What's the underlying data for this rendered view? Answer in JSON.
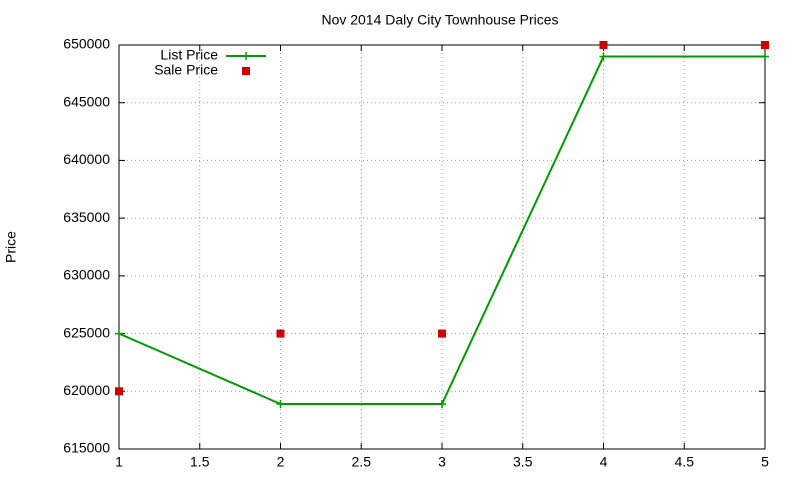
{
  "chart_data": {
    "type": "line",
    "title": "Nov 2014 Daly City Townhouse Prices",
    "y_label": "Price",
    "x": [
      1,
      2,
      3,
      4,
      5
    ],
    "series": [
      {
        "name": "List Price",
        "color": "#009900",
        "style": "linespoints",
        "values": [
          625000,
          618900,
          618900,
          649000,
          649000
        ]
      },
      {
        "name": "Sale Price",
        "color": "#cc0000",
        "style": "points",
        "values": [
          620000,
          625000,
          625000,
          650000,
          650000
        ]
      }
    ],
    "xlim": [
      1,
      5
    ],
    "xticks": [
      1,
      1.5,
      2,
      2.5,
      3,
      3.5,
      4,
      4.5,
      5
    ],
    "ylim": [
      615000,
      650000
    ],
    "yticks": [
      615000,
      620000,
      625000,
      630000,
      635000,
      640000,
      645000,
      650000
    ],
    "grid": true,
    "legend": "top-left"
  }
}
